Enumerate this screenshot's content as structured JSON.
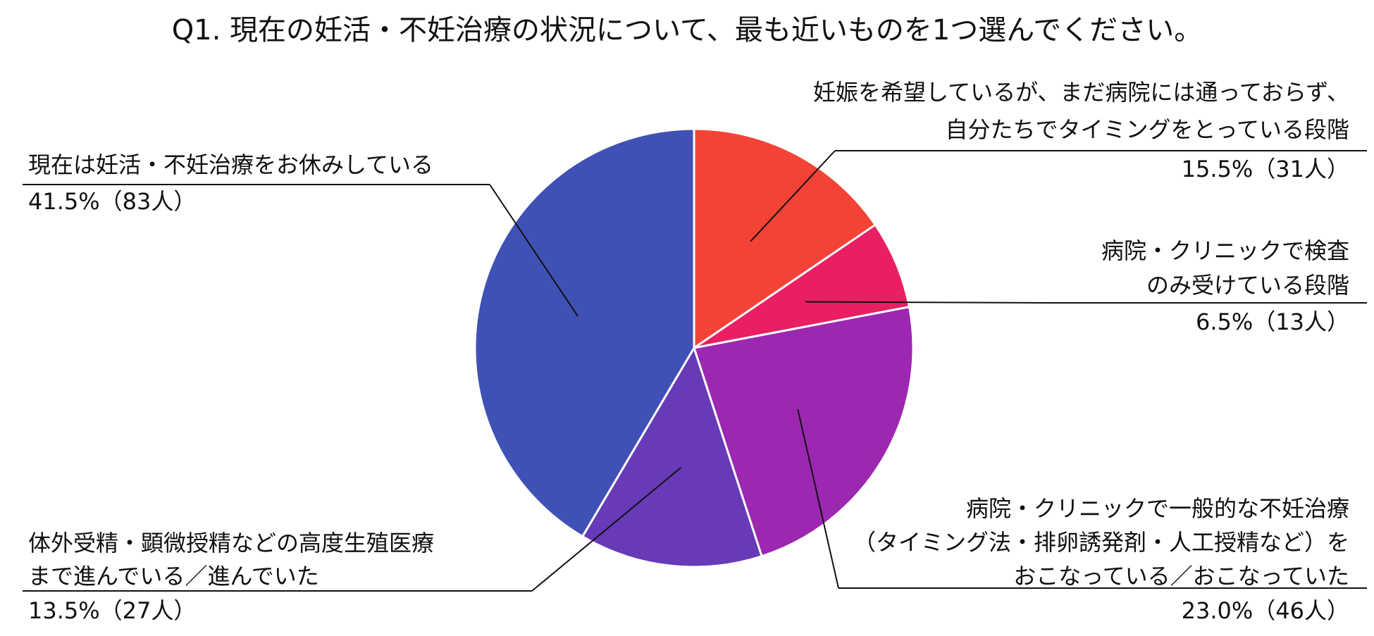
{
  "chart_data": {
    "type": "pie",
    "title": "Q1. 現在の妊活・不妊治療の状況について、最も近いものを1つ選んでください。",
    "slices": [
      {
        "label_lines": [
          "妊娠を希望しているが、まだ病院には通っておらず、",
          "自分たちでタイミングをとっている段階"
        ],
        "value": 15.5,
        "count": 31,
        "value_label": "15.5%（31人）",
        "color": "#F44336"
      },
      {
        "label_lines": [
          "病院・クリニックで検査",
          "のみ受けている段階"
        ],
        "value": 6.5,
        "count": 13,
        "value_label": "6.5%（13人）",
        "color": "#E91E63"
      },
      {
        "label_lines": [
          "病院・クリニックで一般的な不妊治療",
          "（タイミング法・排卵誘発剤・人工授精など）を",
          "おこなっている／おこなっていた"
        ],
        "value": 23.0,
        "count": 46,
        "value_label": "23.0%（46人）",
        "color": "#9C27B0"
      },
      {
        "label_lines": [
          "体外受精・顕微授精などの高度生殖医療",
          "まで進んでいる／進んでいた"
        ],
        "value": 13.5,
        "count": 27,
        "value_label": "13.5%（27人）",
        "color": "#673AB7"
      },
      {
        "label_lines": [
          "現在は妊活・不妊治療をお休みしている"
        ],
        "value": 41.5,
        "count": 83,
        "value_label": "41.5%（83人）",
        "color": "#3F51B5"
      }
    ]
  }
}
